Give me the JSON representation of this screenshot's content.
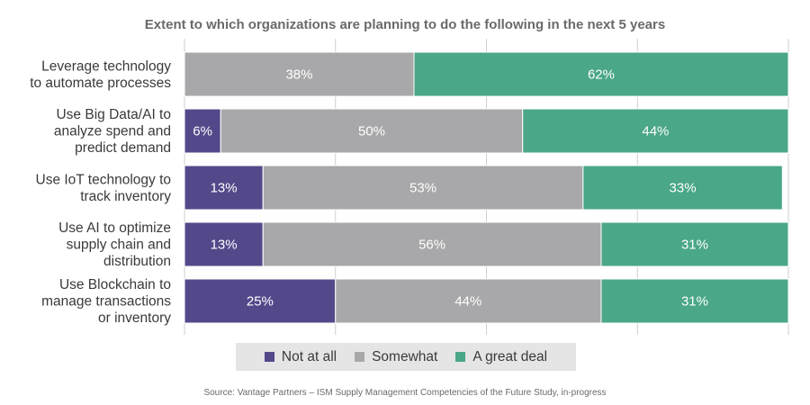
{
  "chart_data": {
    "type": "bar",
    "orientation": "horizontal",
    "stacked": true,
    "title": "Extent to which organizations are planning to do the following in the next 5 years",
    "categories": [
      [
        "Leverage technology",
        "to automate processes"
      ],
      [
        "Use Big Data/AI to",
        "analyze spend and",
        "predict demand"
      ],
      [
        "Use IoT technology to",
        "track inventory"
      ],
      [
        "Use AI to optimize",
        "supply chain and",
        "distribution"
      ],
      [
        "Use Blockchain to",
        "manage transactions",
        "or inventory"
      ]
    ],
    "series": [
      {
        "name": "Not at all",
        "color": "#53498a",
        "values": [
          0,
          6,
          13,
          13,
          25
        ]
      },
      {
        "name": "Somewhat",
        "color": "#a8a8aa",
        "values": [
          38,
          50,
          53,
          56,
          44
        ]
      },
      {
        "name": "A great deal",
        "color": "#4aa787",
        "values": [
          62,
          44,
          33,
          31,
          31
        ]
      }
    ],
    "value_suffix": "%",
    "xlim": [
      0,
      100
    ],
    "legend_position": "bottom",
    "source": "Source: Vantage Partners – ISM Supply Management Competencies of the Future Study, in-progress"
  }
}
